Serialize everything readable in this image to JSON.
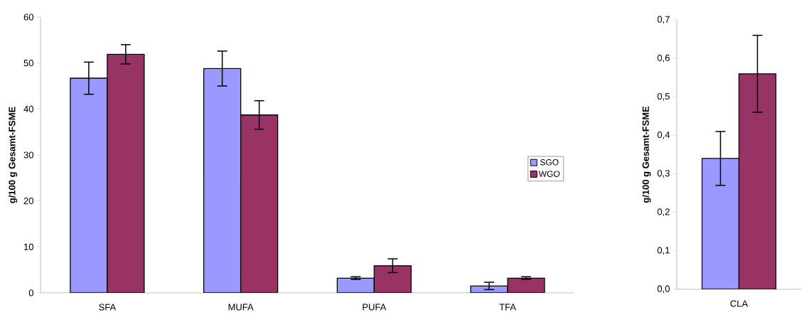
{
  "chart_data": [
    {
      "type": "bar",
      "ylabel": "g/100 g Gesamt-FSME",
      "categories": [
        "SFA",
        "MUFA",
        "PUFA",
        "TFA"
      ],
      "series": [
        {
          "name": "SGO",
          "color": "#9999ff",
          "values": [
            46.7,
            48.8,
            3.2,
            1.5
          ],
          "errors": [
            3.5,
            3.8,
            0.3,
            0.8
          ]
        },
        {
          "name": "WGO",
          "color": "#993366",
          "values": [
            51.9,
            38.7,
            5.9,
            3.2
          ],
          "errors": [
            2.1,
            3.1,
            1.5,
            0.3
          ]
        }
      ],
      "ylim": [
        0,
        60
      ],
      "yticks": [
        0,
        10,
        20,
        30,
        40,
        50,
        60
      ],
      "legend": "right"
    },
    {
      "type": "bar",
      "ylabel": "g/100 g Gesamt-FSME",
      "categories": [
        "CLA"
      ],
      "series": [
        {
          "color": "#9999ff",
          "values": [
            0.34
          ],
          "errors": [
            0.07
          ]
        },
        {
          "color": "#993366",
          "values": [
            0.56
          ],
          "errors": [
            0.1
          ]
        }
      ],
      "ylim": [
        0,
        0.7
      ],
      "yticks": [
        {
          "value": 0,
          "label": "0,0"
        },
        {
          "value": 0.1,
          "label": "0,1"
        },
        {
          "value": 0.2,
          "label": "0,2"
        },
        {
          "value": 0.3,
          "label": "0,3"
        },
        {
          "value": 0.4,
          "label": "0,4"
        },
        {
          "value": 0.5,
          "label": "0,5"
        },
        {
          "value": 0.6,
          "label": "0,6"
        },
        {
          "value": 0.7,
          "label": "0,7"
        }
      ]
    }
  ]
}
